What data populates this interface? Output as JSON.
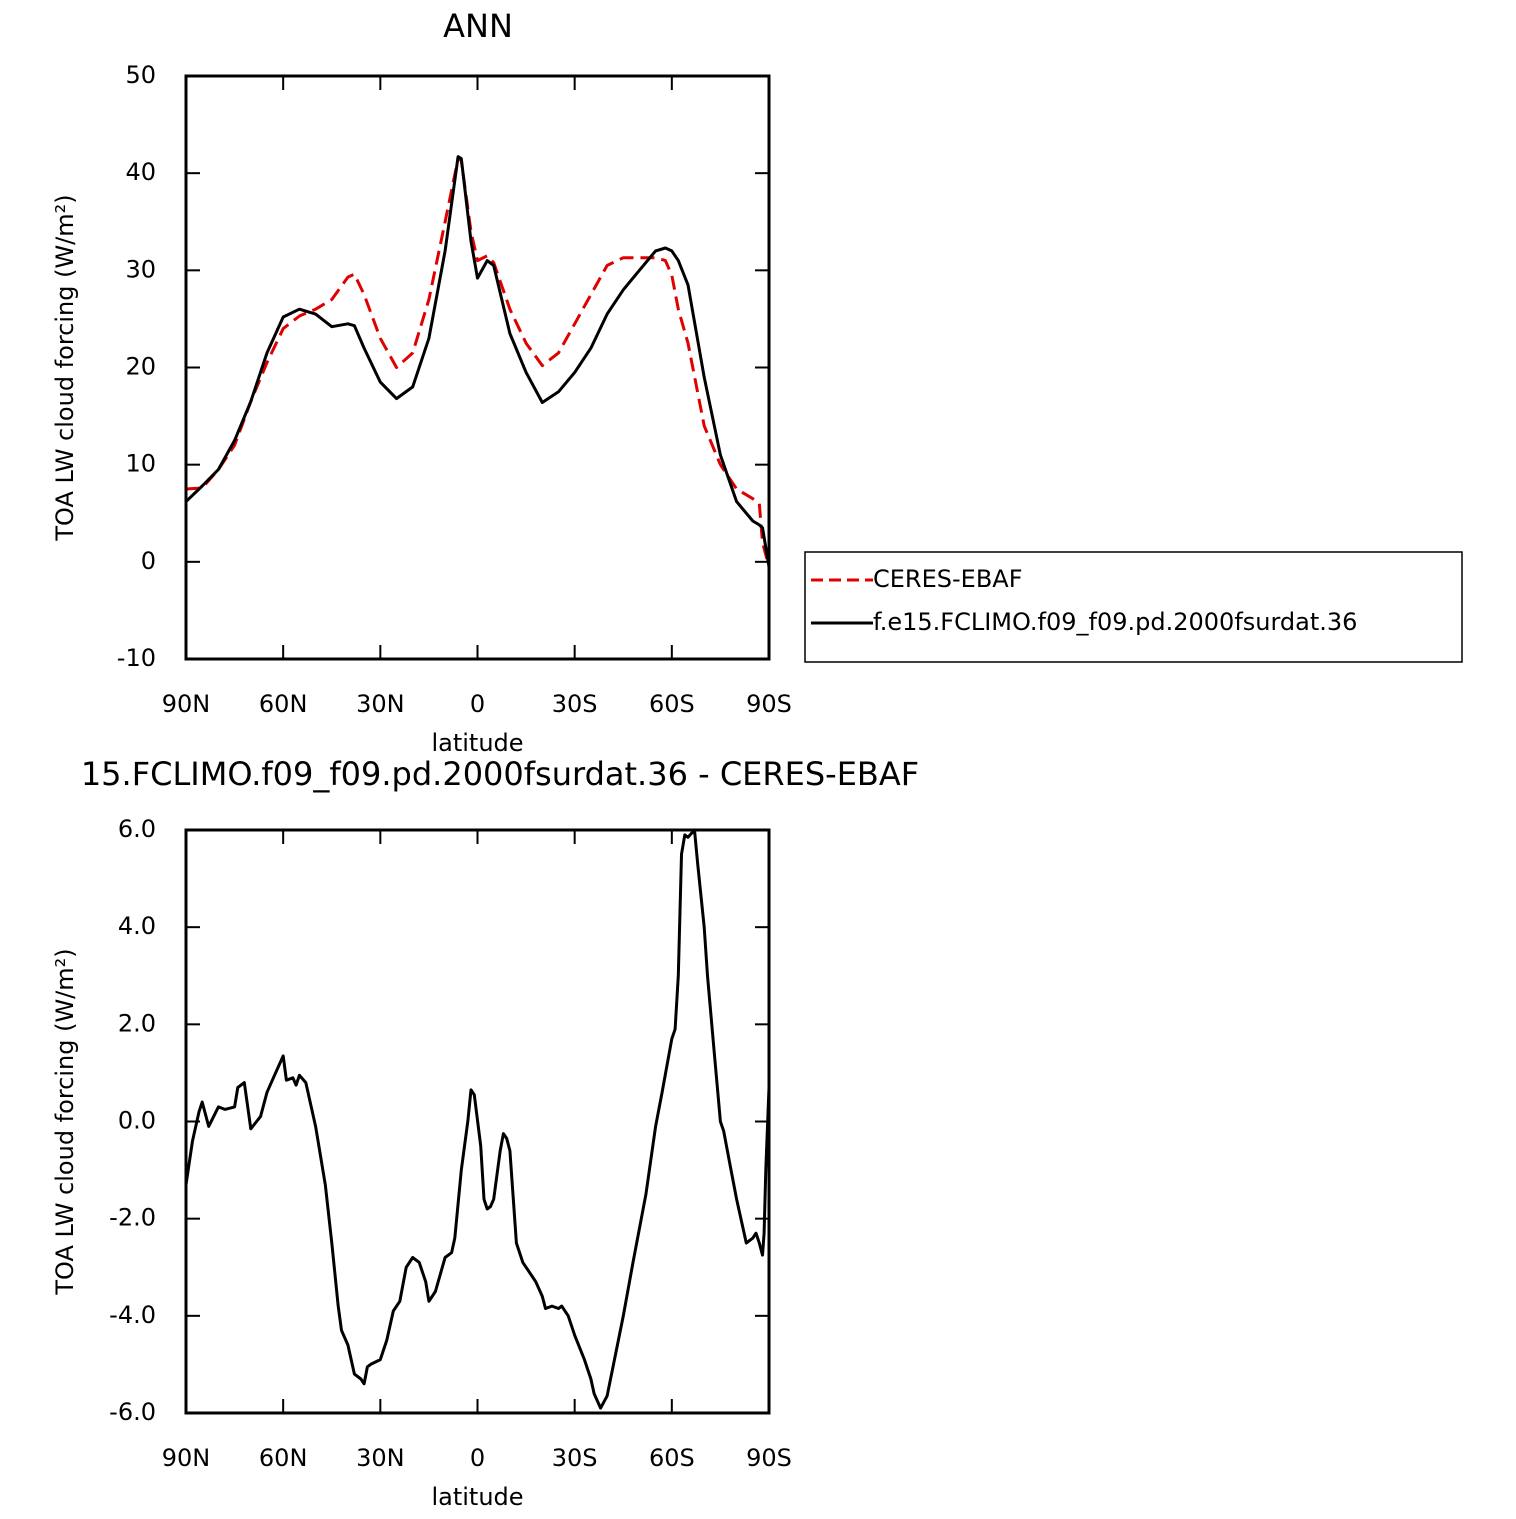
{
  "chart_data": [
    {
      "type": "line",
      "title": "ANN",
      "xlabel": "latitude",
      "ylabel": "TOA LW cloud forcing (W/m²)",
      "x": [
        90,
        85,
        80,
        75,
        70,
        65,
        60,
        55,
        50,
        45,
        40,
        38,
        35,
        30,
        25,
        20,
        15,
        10,
        6,
        5,
        2,
        0,
        -3,
        -5,
        -10,
        -15,
        -20,
        -25,
        -30,
        -35,
        -40,
        -45,
        -50,
        -55,
        -58,
        -60,
        -62,
        -65,
        -70,
        -75,
        -80,
        -85,
        -87,
        -88,
        -90
      ],
      "series": [
        {
          "name": "CERES-EBAF",
          "color": "#e00000",
          "dashed": true,
          "values": [
            7.5,
            7.6,
            9.5,
            12,
            16.5,
            20.5,
            24,
            25.3,
            26,
            27,
            29.3,
            29.6,
            27.5,
            23,
            20,
            21.5,
            27,
            35,
            41.5,
            41.3,
            34,
            31,
            31.5,
            30.8,
            26,
            22.5,
            20.2,
            21.5,
            24.5,
            27.5,
            30.5,
            31.3,
            31.3,
            31.3,
            31,
            29.5,
            26,
            22.5,
            14,
            10,
            7.5,
            6.5,
            6,
            2,
            -0.5
          ]
        },
        {
          "name": "f.e15.FCLIMO.f09_f09.pd.2000fsurdat.36",
          "color": "#000000",
          "dashed": false,
          "values": [
            6.2,
            7.8,
            9.5,
            12.5,
            16.5,
            21.5,
            25.2,
            26,
            25.5,
            24.2,
            24.5,
            24.3,
            22,
            18.5,
            16.8,
            18,
            23,
            32,
            41.7,
            41.5,
            33,
            29.2,
            31,
            30.5,
            23.5,
            19.5,
            16.4,
            17.5,
            19.5,
            22,
            25.5,
            28,
            30,
            32,
            32.3,
            32,
            31,
            28.5,
            19,
            11,
            6.2,
            4.2,
            3.8,
            3.5,
            -0.5
          ]
        }
      ],
      "xlim": [
        90,
        -90
      ],
      "xticks": [
        {
          "value": 90,
          "label": "90N"
        },
        {
          "value": 60,
          "label": "60N"
        },
        {
          "value": 30,
          "label": "30N"
        },
        0,
        {
          "value": -30,
          "label": "30S"
        },
        {
          "value": -60,
          "label": "60S"
        },
        {
          "value": -90,
          "label": "90S"
        }
      ],
      "ylim": [
        -10,
        50
      ],
      "yticks": [
        -10,
        0,
        10,
        20,
        30,
        40,
        50
      ],
      "legend": "right",
      "grid": false
    },
    {
      "type": "line",
      "title": "15.FCLIMO.f09_f09.pd.2000fsurdat.36 - CERES-EBAF",
      "xlabel": "latitude",
      "ylabel": "TOA LW cloud forcing (W/m²)",
      "x": [
        90,
        88,
        86,
        85,
        83,
        80,
        78,
        75,
        74,
        72,
        70,
        67,
        65,
        63,
        60,
        59,
        57,
        56,
        55,
        53,
        50,
        47,
        45,
        43,
        42,
        40,
        38,
        36,
        35,
        34,
        33,
        30,
        28,
        26,
        24,
        22,
        20,
        18,
        16,
        15,
        13,
        10,
        8,
        7,
        5,
        3,
        2,
        1,
        -1,
        -2,
        -3,
        -4,
        -5,
        -7,
        -8,
        -9,
        -10,
        -12,
        -14,
        -17,
        -18,
        -20,
        -21,
        -23,
        -25,
        -26,
        -28,
        -30,
        -33,
        -35,
        -36,
        -38,
        -40,
        -42,
        -45,
        -48,
        -52,
        -55,
        -57,
        -60,
        -61,
        -62,
        -63,
        -64,
        -65,
        -67,
        -68,
        -70,
        -71,
        -73,
        -75,
        -76,
        -78,
        -80,
        -83,
        -85,
        -86,
        -87,
        -88,
        -88.5,
        -89,
        -90
      ],
      "series": [
        {
          "color": "#000000",
          "dashed": false,
          "values": [
            -1.3,
            -0.4,
            0.2,
            0.4,
            -0.1,
            0.3,
            0.25,
            0.3,
            0.7,
            0.8,
            -0.15,
            0.1,
            0.6,
            0.9,
            1.35,
            0.85,
            0.9,
            0.75,
            0.95,
            0.8,
            -0.1,
            -1.3,
            -2.5,
            -3.8,
            -4.3,
            -4.6,
            -5.2,
            -5.3,
            -5.4,
            -5.05,
            -5,
            -4.9,
            -4.5,
            -3.9,
            -3.7,
            -3,
            -2.8,
            -2.9,
            -3.3,
            -3.7,
            -3.5,
            -2.8,
            -2.7,
            -2.4,
            -1,
            0,
            0.65,
            0.55,
            -0.5,
            -1.6,
            -1.8,
            -1.75,
            -1.6,
            -0.6,
            -0.25,
            -0.35,
            -0.6,
            -2.5,
            -2.9,
            -3.2,
            -3.3,
            -3.6,
            -3.85,
            -3.8,
            -3.85,
            -3.8,
            -4,
            -4.4,
            -4.9,
            -5.3,
            -5.6,
            -5.9,
            -5.65,
            -5,
            -4,
            -2.9,
            -1.5,
            -0.1,
            0.6,
            1.7,
            1.9,
            3,
            5.5,
            5.9,
            5.85,
            6,
            5.3,
            4,
            3,
            1.5,
            0,
            -0.2,
            -0.9,
            -1.6,
            -2.5,
            -2.4,
            -2.3,
            -2.5,
            -2.75,
            -2.3,
            -1,
            0.7
          ]
        }
      ],
      "xlim": [
        90,
        -90
      ],
      "xticks": [
        {
          "value": 90,
          "label": "90N"
        },
        {
          "value": 60,
          "label": "60N"
        },
        {
          "value": 30,
          "label": "30N"
        },
        0,
        {
          "value": -30,
          "label": "30S"
        },
        {
          "value": -60,
          "label": "60S"
        },
        {
          "value": -90,
          "label": "90S"
        }
      ],
      "ylim": [
        -6,
        6
      ],
      "yticks": [
        {
          "value": -6,
          "label": "-6.0"
        },
        {
          "value": -4,
          "label": "-4.0"
        },
        {
          "value": -2,
          "label": "-2.0"
        },
        {
          "value": 0,
          "label": "0.0"
        },
        {
          "value": 2,
          "label": "2.0"
        },
        {
          "value": 4,
          "label": "4.0"
        },
        {
          "value": 6,
          "label": "6.0"
        }
      ],
      "grid": false
    }
  ]
}
